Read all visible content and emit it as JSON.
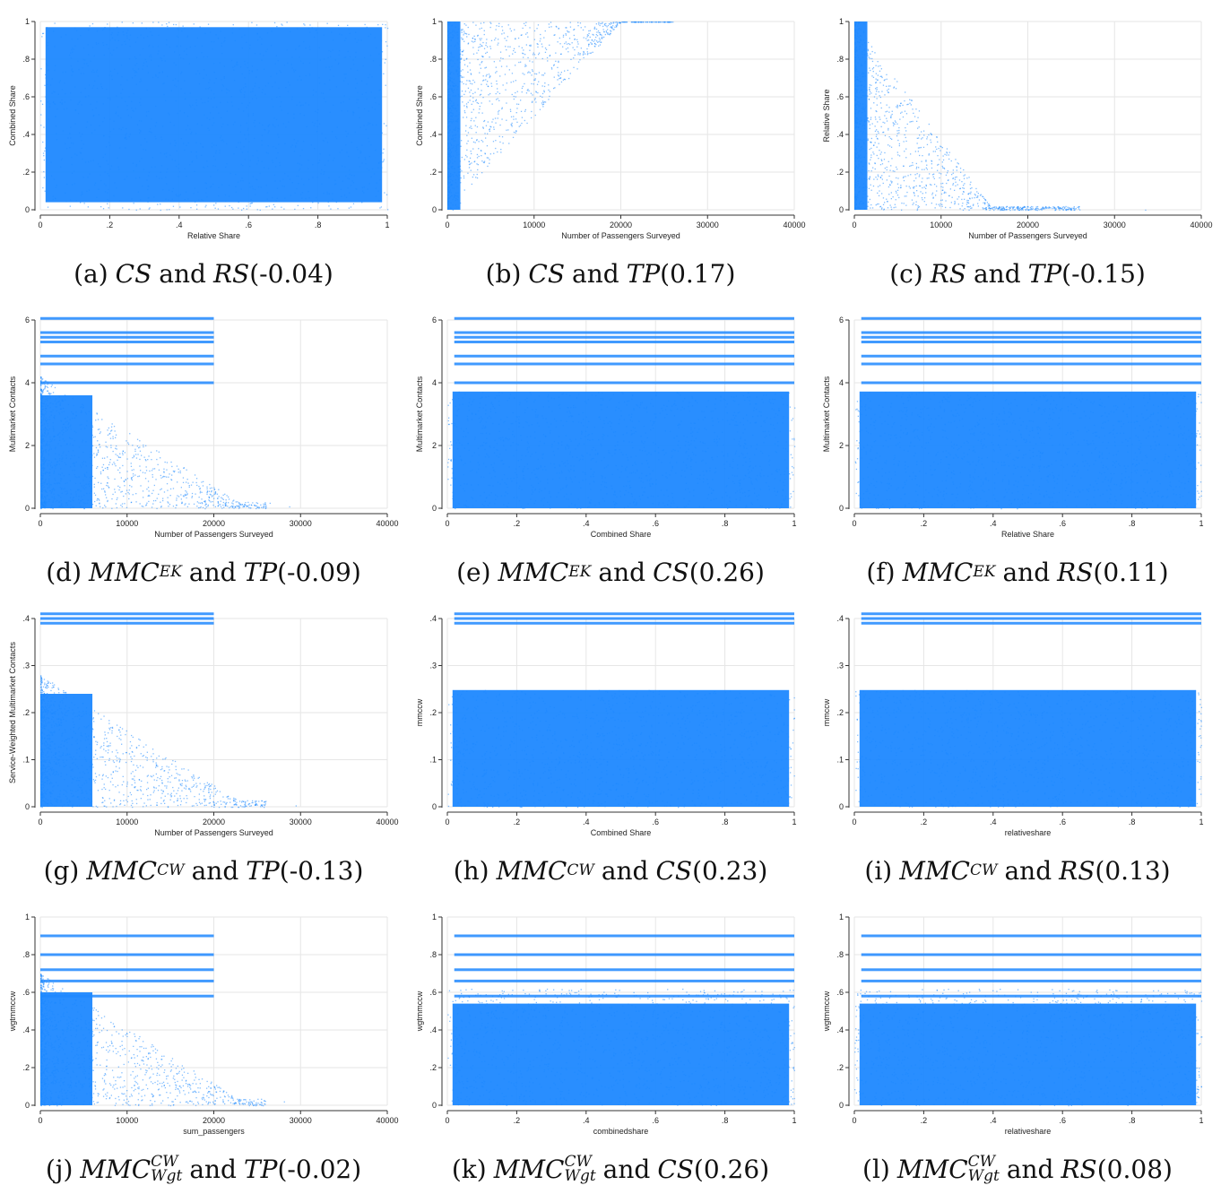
{
  "style": {
    "point_color": "#1e88ff",
    "grid_color": "#e6e6e6",
    "axis_color": "#333333"
  },
  "panels": [
    {
      "letter": "(a)",
      "var1": "CS",
      "var1_sup": "",
      "var1_sub": "",
      "var2": "RS",
      "corr": "(-0.04)",
      "chart": {
        "type": "scatter",
        "xlabel": "Relative Share",
        "ylabel": "Combined Share",
        "xlim": [
          0,
          1
        ],
        "ylim": [
          0,
          1
        ],
        "xticks": [
          0,
          0.2,
          0.4,
          0.6,
          0.8,
          1
        ],
        "xticklabels": [
          "0",
          ".2",
          ".4",
          ".6",
          ".8",
          "1"
        ],
        "yticks": [
          0,
          0.2,
          0.4,
          0.6,
          0.8,
          1
        ],
        "yticklabels": [
          "0",
          ".2",
          ".4",
          ".6",
          ".8",
          "1"
        ]
      }
    },
    {
      "letter": "(b)",
      "var1": "CS",
      "var1_sup": "",
      "var1_sub": "",
      "var2": "TP",
      "corr": "(0.17)",
      "chart": {
        "type": "scatter",
        "xlabel": "Number of Passengers Surveyed",
        "ylabel": "Combined Share",
        "xlim": [
          0,
          40000
        ],
        "ylim": [
          0,
          1
        ],
        "xticks": [
          0,
          10000,
          20000,
          30000,
          40000
        ],
        "xticklabels": [
          "0",
          "10000",
          "20000",
          "30000",
          "40000"
        ],
        "yticks": [
          0,
          0.2,
          0.4,
          0.6,
          0.8,
          1
        ],
        "yticklabels": [
          "0",
          ".2",
          ".4",
          ".6",
          ".8",
          "1"
        ]
      }
    },
    {
      "letter": "(c)",
      "var1": "RS",
      "var1_sup": "",
      "var1_sub": "",
      "var2": "TP",
      "corr": "(-0.15)",
      "chart": {
        "type": "scatter",
        "xlabel": "Number of Passengers Surveyed",
        "ylabel": "Relative Share",
        "xlim": [
          0,
          40000
        ],
        "ylim": [
          0,
          1
        ],
        "xticks": [
          0,
          10000,
          20000,
          30000,
          40000
        ],
        "xticklabels": [
          "0",
          "10000",
          "20000",
          "30000",
          "40000"
        ],
        "yticks": [
          0,
          0.2,
          0.4,
          0.6,
          0.8,
          1
        ],
        "yticklabels": [
          "0",
          ".2",
          ".4",
          ".6",
          ".8",
          "1"
        ]
      }
    },
    {
      "letter": "(d)",
      "var1": "MMC",
      "var1_sup": "EK",
      "var1_sub": "",
      "var2": "TP",
      "corr": "(-0.09)",
      "chart": {
        "type": "scatter",
        "xlabel": "Number of Passengers Surveyed",
        "ylabel": "Multimarket Contacts",
        "xlim": [
          0,
          40000
        ],
        "ylim": [
          0,
          6
        ],
        "xticks": [
          0,
          10000,
          20000,
          30000,
          40000
        ],
        "xticklabels": [
          "0",
          "10000",
          "20000",
          "30000",
          "40000"
        ],
        "yticks": [
          0,
          2,
          4,
          6
        ],
        "yticklabels": [
          "0",
          "2",
          "4",
          "6"
        ]
      }
    },
    {
      "letter": "(e)",
      "var1": "MMC",
      "var1_sup": "EK",
      "var1_sub": "",
      "var2": "CS",
      "corr": "(0.26)",
      "chart": {
        "type": "scatter",
        "xlabel": "Combined Share",
        "ylabel": "Multimarket Contacts",
        "xlim": [
          0,
          1
        ],
        "ylim": [
          0,
          6
        ],
        "xticks": [
          0,
          0.2,
          0.4,
          0.6,
          0.8,
          1
        ],
        "xticklabels": [
          "0",
          ".2",
          ".4",
          ".6",
          ".8",
          "1"
        ],
        "yticks": [
          0,
          2,
          4,
          6
        ],
        "yticklabels": [
          "0",
          "2",
          "4",
          "6"
        ]
      }
    },
    {
      "letter": "(f)",
      "var1": "MMC",
      "var1_sup": "EK",
      "var1_sub": "",
      "var2": "RS",
      "corr": "(0.11)",
      "chart": {
        "type": "scatter",
        "xlabel": "Relative Share",
        "ylabel": "Multimarket Contacts",
        "xlim": [
          0,
          1
        ],
        "ylim": [
          0,
          6
        ],
        "xticks": [
          0,
          0.2,
          0.4,
          0.6,
          0.8,
          1
        ],
        "xticklabels": [
          "0",
          ".2",
          ".4",
          ".6",
          ".8",
          "1"
        ],
        "yticks": [
          0,
          2,
          4,
          6
        ],
        "yticklabels": [
          "0",
          "2",
          "4",
          "6"
        ]
      }
    },
    {
      "letter": "(g)",
      "var1": "MMC",
      "var1_sup": "CW",
      "var1_sub": "",
      "var2": "TP",
      "corr": "(-0.13)",
      "chart": {
        "type": "scatter",
        "xlabel": "Number of Passengers Surveyed",
        "ylabel": "Service-Weighted Multimarket Contacts",
        "xlim": [
          0,
          40000
        ],
        "ylim": [
          0,
          0.4
        ],
        "xticks": [
          0,
          10000,
          20000,
          30000,
          40000
        ],
        "xticklabels": [
          "0",
          "10000",
          "20000",
          "30000",
          "40000"
        ],
        "yticks": [
          0,
          0.1,
          0.2,
          0.3,
          0.4
        ],
        "yticklabels": [
          "0",
          ".1",
          ".2",
          ".3",
          ".4"
        ]
      }
    },
    {
      "letter": "(h)",
      "var1": "MMC",
      "var1_sup": "CW",
      "var1_sub": "",
      "var2": "CS",
      "corr": "(0.23)",
      "chart": {
        "type": "scatter",
        "xlabel": "Combined Share",
        "ylabel": "mmccw",
        "xlim": [
          0,
          1
        ],
        "ylim": [
          0,
          0.4
        ],
        "xticks": [
          0,
          0.2,
          0.4,
          0.6,
          0.8,
          1
        ],
        "xticklabels": [
          "0",
          ".2",
          ".4",
          ".6",
          ".8",
          "1"
        ],
        "yticks": [
          0,
          0.1,
          0.2,
          0.3,
          0.4
        ],
        "yticklabels": [
          "0",
          ".1",
          ".2",
          ".3",
          ".4"
        ]
      }
    },
    {
      "letter": "(i)",
      "var1": "MMC",
      "var1_sup": "CW",
      "var1_sub": "",
      "var2": "RS",
      "corr": "(0.13)",
      "chart": {
        "type": "scatter",
        "xlabel": "relativeshare",
        "ylabel": "mmccw",
        "xlim": [
          0,
          1
        ],
        "ylim": [
          0,
          0.4
        ],
        "xticks": [
          0,
          0.2,
          0.4,
          0.6,
          0.8,
          1
        ],
        "xticklabels": [
          "0",
          ".2",
          ".4",
          ".6",
          ".8",
          "1"
        ],
        "yticks": [
          0,
          0.1,
          0.2,
          0.3,
          0.4
        ],
        "yticklabels": [
          "0",
          ".1",
          ".2",
          ".3",
          ".4"
        ]
      }
    },
    {
      "letter": "(j)",
      "var1": "MMC",
      "var1_sup": "CW",
      "var1_sub": "Wgt",
      "var2": "TP",
      "corr": "(-0.02)",
      "chart": {
        "type": "scatter",
        "xlabel": "sum_passengers",
        "ylabel": "wgtmmccw",
        "xlim": [
          0,
          40000
        ],
        "ylim": [
          0,
          1
        ],
        "xticks": [
          0,
          10000,
          20000,
          30000,
          40000
        ],
        "xticklabels": [
          "0",
          "10000",
          "20000",
          "30000",
          "40000"
        ],
        "yticks": [
          0,
          0.2,
          0.4,
          0.6,
          0.8,
          1
        ],
        "yticklabels": [
          "0",
          ".2",
          ".4",
          ".6",
          ".8",
          "1"
        ]
      }
    },
    {
      "letter": "(k)",
      "var1": "MMC",
      "var1_sup": "CW",
      "var1_sub": "Wgt",
      "var2": "CS",
      "corr": "(0.26)",
      "chart": {
        "type": "scatter",
        "xlabel": "combinedshare",
        "ylabel": "wgtmmccw",
        "xlim": [
          0,
          1
        ],
        "ylim": [
          0,
          1
        ],
        "xticks": [
          0,
          0.2,
          0.4,
          0.6,
          0.8,
          1
        ],
        "xticklabels": [
          "0",
          ".2",
          ".4",
          ".6",
          ".8",
          "1"
        ],
        "yticks": [
          0,
          0.2,
          0.4,
          0.6,
          0.8,
          1
        ],
        "yticklabels": [
          "0",
          ".2",
          ".4",
          ".6",
          ".8",
          "1"
        ]
      }
    },
    {
      "letter": "(l)",
      "var1": "MMC",
      "var1_sup": "CW",
      "var1_sub": "Wgt",
      "var2": "RS",
      "corr": "(0.08)",
      "chart": {
        "type": "scatter",
        "xlabel": "relativeshare",
        "ylabel": "wgtmmccw",
        "xlim": [
          0,
          1
        ],
        "ylim": [
          0,
          1
        ],
        "xticks": [
          0,
          0.2,
          0.4,
          0.6,
          0.8,
          1
        ],
        "xticklabels": [
          "0",
          ".2",
          ".4",
          ".6",
          ".8",
          "1"
        ],
        "yticks": [
          0,
          0.2,
          0.4,
          0.6,
          0.8,
          1
        ],
        "yticklabels": [
          "0",
          ".2",
          ".4",
          ".6",
          ".8",
          "1"
        ]
      }
    }
  ],
  "conjunction": "and",
  "chart_data": [
    {
      "type": "scatter",
      "title": "",
      "xlabel": "Relative Share",
      "ylabel": "Combined Share",
      "xlim": [
        0,
        1
      ],
      "ylim": [
        0,
        1
      ],
      "grid": true,
      "legend": "none"
    },
    {
      "type": "scatter",
      "title": "",
      "xlabel": "Number of Passengers Surveyed",
      "ylabel": "Combined Share",
      "xlim": [
        0,
        40000
      ],
      "ylim": [
        0,
        1
      ],
      "grid": true,
      "legend": "none"
    },
    {
      "type": "scatter",
      "title": "",
      "xlabel": "Number of Passengers Surveyed",
      "ylabel": "Relative Share",
      "xlim": [
        0,
        40000
      ],
      "ylim": [
        0,
        1
      ],
      "grid": true,
      "legend": "none"
    },
    {
      "type": "scatter",
      "title": "",
      "xlabel": "Number of Passengers Surveyed",
      "ylabel": "Multimarket Contacts",
      "xlim": [
        0,
        40000
      ],
      "ylim": [
        0,
        6
      ],
      "grid": true,
      "legend": "none"
    },
    {
      "type": "scatter",
      "title": "",
      "xlabel": "Combined Share",
      "ylabel": "Multimarket Contacts",
      "xlim": [
        0,
        1
      ],
      "ylim": [
        0,
        6
      ],
      "grid": true,
      "legend": "none"
    },
    {
      "type": "scatter",
      "title": "",
      "xlabel": "Relative Share",
      "ylabel": "Multimarket Contacts",
      "xlim": [
        0,
        1
      ],
      "ylim": [
        0,
        6
      ],
      "grid": true,
      "legend": "none"
    },
    {
      "type": "scatter",
      "title": "",
      "xlabel": "Number of Passengers Surveyed",
      "ylabel": "Service-Weighted Multimarket Contacts",
      "xlim": [
        0,
        40000
      ],
      "ylim": [
        0,
        0.4
      ],
      "grid": true,
      "legend": "none"
    },
    {
      "type": "scatter",
      "title": "",
      "xlabel": "Combined Share",
      "ylabel": "mmccw",
      "xlim": [
        0,
        1
      ],
      "ylim": [
        0,
        0.4
      ],
      "grid": true,
      "legend": "none"
    },
    {
      "type": "scatter",
      "title": "",
      "xlabel": "relativeshare",
      "ylabel": "mmccw",
      "xlim": [
        0,
        1
      ],
      "ylim": [
        0,
        0.4
      ],
      "grid": true,
      "legend": "none"
    },
    {
      "type": "scatter",
      "title": "",
      "xlabel": "sum_passengers",
      "ylabel": "wgtmmccw",
      "xlim": [
        0,
        40000
      ],
      "ylim": [
        0,
        1
      ],
      "grid": true,
      "legend": "none"
    },
    {
      "type": "scatter",
      "title": "",
      "xlabel": "combinedshare",
      "ylabel": "wgtmmccw",
      "xlim": [
        0,
        1
      ],
      "ylim": [
        0,
        1
      ],
      "grid": true,
      "legend": "none"
    },
    {
      "type": "scatter",
      "title": "",
      "xlabel": "relativeshare",
      "ylabel": "wgtmmccw",
      "xlim": [
        0,
        1
      ],
      "ylim": [
        0,
        1
      ],
      "grid": true,
      "legend": "none"
    }
  ]
}
